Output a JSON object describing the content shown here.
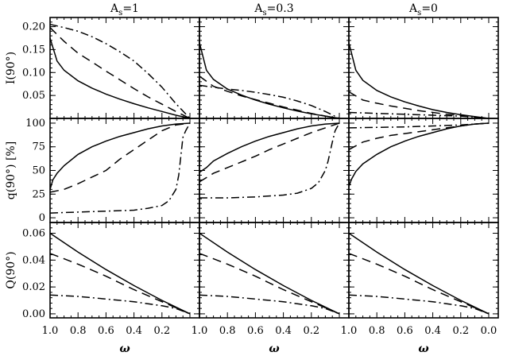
{
  "columns": [
    {
      "label": "A",
      "sub": "s",
      "value": "=1"
    },
    {
      "label": "A",
      "sub": "s",
      "value": "=0.3"
    },
    {
      "label": "A",
      "sub": "s",
      "value": "=0"
    }
  ],
  "x_axis": {
    "label": "ω",
    "ticks": [
      "1.0",
      "0.8",
      "0.6",
      "0.4",
      "0.2",
      "0.0"
    ]
  },
  "chart_data": [
    {
      "type": "line",
      "row_label": "I(90°)",
      "ylabel": "I(90°)",
      "xlabel": "ω",
      "xlim": [
        1.0,
        0.0
      ],
      "ylim": [
        0.0,
        0.22
      ],
      "yticks": [
        0.05,
        0.1,
        0.15,
        0.2
      ],
      "ytick_labels": [
        "0.05",
        "0.10",
        "0.15",
        "0.20"
      ],
      "panels": [
        {
          "column": "As=1",
          "series": [
            {
              "style": "solid",
              "x": [
                1.0,
                0.95,
                0.9,
                0.8,
                0.7,
                0.6,
                0.5,
                0.4,
                0.3,
                0.2,
                0.1,
                0.0
              ],
              "y": [
                0.175,
                0.125,
                0.105,
                0.082,
                0.066,
                0.053,
                0.042,
                0.032,
                0.023,
                0.015,
                0.007,
                0.0
              ]
            },
            {
              "style": "dash",
              "x": [
                1.0,
                0.9,
                0.8,
                0.7,
                0.6,
                0.5,
                0.4,
                0.3,
                0.2,
                0.1,
                0.0
              ],
              "y": [
                0.198,
                0.168,
                0.142,
                0.123,
                0.103,
                0.084,
                0.065,
                0.047,
                0.031,
                0.015,
                0.0
              ]
            },
            {
              "style": "dashdot",
              "x": [
                1.0,
                0.9,
                0.8,
                0.7,
                0.6,
                0.5,
                0.4,
                0.3,
                0.2,
                0.1,
                0.0
              ],
              "y": [
                0.205,
                0.198,
                0.19,
                0.178,
                0.163,
                0.145,
                0.125,
                0.098,
                0.068,
                0.032,
                0.0
              ]
            }
          ]
        },
        {
          "column": "As=0.3",
          "series": [
            {
              "style": "solid",
              "x": [
                1.0,
                0.95,
                0.9,
                0.8,
                0.7,
                0.6,
                0.5,
                0.4,
                0.3,
                0.2,
                0.1,
                0.0
              ],
              "y": [
                0.165,
                0.105,
                0.085,
                0.064,
                0.051,
                0.04,
                0.031,
                0.023,
                0.016,
                0.01,
                0.005,
                0.0
              ]
            },
            {
              "style": "dash",
              "x": [
                1.0,
                0.9,
                0.8,
                0.7,
                0.6,
                0.5,
                0.4,
                0.3,
                0.2,
                0.1,
                0.0
              ],
              "y": [
                0.092,
                0.07,
                0.059,
                0.049,
                0.041,
                0.033,
                0.025,
                0.018,
                0.011,
                0.005,
                0.0
              ]
            },
            {
              "style": "dashdot",
              "x": [
                1.0,
                0.9,
                0.8,
                0.7,
                0.6,
                0.5,
                0.4,
                0.3,
                0.2,
                0.1,
                0.0
              ],
              "y": [
                0.072,
                0.068,
                0.064,
                0.061,
                0.057,
                0.052,
                0.046,
                0.038,
                0.028,
                0.015,
                0.0
              ]
            }
          ]
        },
        {
          "column": "As=0",
          "series": [
            {
              "style": "solid",
              "x": [
                1.0,
                0.95,
                0.9,
                0.8,
                0.7,
                0.6,
                0.5,
                0.4,
                0.3,
                0.2,
                0.1,
                0.0
              ],
              "y": [
                0.165,
                0.105,
                0.083,
                0.061,
                0.047,
                0.036,
                0.027,
                0.019,
                0.013,
                0.008,
                0.004,
                0.0
              ]
            },
            {
              "style": "dash",
              "x": [
                1.0,
                0.9,
                0.8,
                0.7,
                0.6,
                0.5,
                0.4,
                0.3,
                0.2,
                0.1,
                0.0
              ],
              "y": [
                0.058,
                0.04,
                0.033,
                0.027,
                0.022,
                0.017,
                0.013,
                0.009,
                0.006,
                0.003,
                0.0
              ]
            },
            {
              "style": "dashdot",
              "x": [
                1.0,
                0.8,
                0.6,
                0.4,
                0.2,
                0.1,
                0.0
              ],
              "y": [
                0.013,
                0.011,
                0.009,
                0.007,
                0.005,
                0.003,
                0.0
              ]
            }
          ]
        }
      ]
    },
    {
      "type": "line",
      "row_label": "q(90°) [%]",
      "ylabel": "q(90°) [%]",
      "xlabel": "ω",
      "xlim": [
        1.0,
        0.0
      ],
      "ylim": [
        -5,
        105
      ],
      "yticks": [
        0,
        25,
        50,
        75,
        100
      ],
      "ytick_labels": [
        "0",
        "25",
        "50",
        "75",
        "100"
      ],
      "panels": [
        {
          "column": "As=1",
          "series": [
            {
              "style": "solid",
              "x": [
                1.0,
                0.98,
                0.95,
                0.9,
                0.8,
                0.7,
                0.6,
                0.5,
                0.4,
                0.3,
                0.2,
                0.1,
                0.0
              ],
              "y": [
                30,
                40,
                47,
                55,
                67,
                75,
                81,
                86,
                90,
                94,
                97,
                99,
                100
              ]
            },
            {
              "style": "dash",
              "x": [
                1.0,
                0.9,
                0.8,
                0.7,
                0.6,
                0.5,
                0.4,
                0.3,
                0.2,
                0.1,
                0.0
              ],
              "y": [
                27,
                30,
                36,
                43,
                50,
                62,
                72,
                82,
                92,
                98,
                100
              ]
            },
            {
              "style": "dashdot",
              "x": [
                1.0,
                0.8,
                0.6,
                0.4,
                0.3,
                0.2,
                0.15,
                0.1,
                0.08,
                0.05,
                0.03,
                0.0
              ],
              "y": [
                5,
                6,
                7,
                8,
                10,
                13,
                18,
                30,
                45,
                85,
                92,
                100
              ]
            }
          ]
        },
        {
          "column": "As=0.3",
          "series": [
            {
              "style": "solid",
              "x": [
                1.0,
                0.98,
                0.95,
                0.9,
                0.8,
                0.7,
                0.6,
                0.5,
                0.4,
                0.3,
                0.2,
                0.1,
                0.0
              ],
              "y": [
                48,
                50,
                53,
                60,
                68,
                75,
                81,
                86,
                90,
                94,
                97,
                99,
                100
              ]
            },
            {
              "style": "dash",
              "x": [
                1.0,
                0.9,
                0.8,
                0.7,
                0.6,
                0.5,
                0.4,
                0.3,
                0.2,
                0.1,
                0.0
              ],
              "y": [
                38,
                47,
                53,
                59,
                65,
                72,
                78,
                84,
                90,
                95,
                100
              ]
            },
            {
              "style": "dashdot",
              "x": [
                1.0,
                0.8,
                0.6,
                0.4,
                0.3,
                0.2,
                0.15,
                0.1,
                0.08,
                0.05,
                0.03,
                0.0
              ],
              "y": [
                21,
                21,
                22,
                24,
                26,
                31,
                37,
                50,
                60,
                80,
                92,
                100
              ]
            }
          ]
        },
        {
          "column": "As=0",
          "series": [
            {
              "style": "solid",
              "x": [
                1.0,
                0.98,
                0.95,
                0.9,
                0.8,
                0.7,
                0.6,
                0.5,
                0.4,
                0.3,
                0.2,
                0.1,
                0.0
              ],
              "y": [
                33,
                41,
                49,
                57,
                67,
                75,
                81,
                86,
                90,
                94,
                97,
                99,
                100
              ]
            },
            {
              "style": "dash",
              "x": [
                1.0,
                0.9,
                0.8,
                0.7,
                0.6,
                0.5,
                0.4,
                0.3,
                0.2,
                0.1,
                0.0
              ],
              "y": [
                72,
                80,
                84,
                87,
                89,
                91,
                93,
                95,
                97,
                99,
                100
              ]
            },
            {
              "style": "dashdot",
              "x": [
                1.0,
                0.8,
                0.6,
                0.4,
                0.2,
                0.1,
                0.0
              ],
              "y": [
                95,
                95.5,
                96,
                97,
                98,
                99,
                100
              ]
            }
          ]
        }
      ]
    },
    {
      "type": "line",
      "row_label": "Q(90°)",
      "ylabel": "Q(90°)",
      "xlabel": "ω",
      "xlim": [
        1.0,
        0.0
      ],
      "ylim": [
        -0.003,
        0.068
      ],
      "yticks": [
        0.0,
        0.02,
        0.04,
        0.06
      ],
      "ytick_labels": [
        "0.00",
        "0.02",
        "0.04",
        "0.06"
      ],
      "panels": [
        {
          "column": "As=1",
          "series": [
            {
              "style": "solid",
              "x": [
                1.0,
                0.8,
                0.6,
                0.4,
                0.2,
                0.0
              ],
              "y": [
                0.06,
                0.046,
                0.033,
                0.021,
                0.01,
                0.0
              ]
            },
            {
              "style": "dash",
              "x": [
                1.0,
                0.8,
                0.6,
                0.4,
                0.2,
                0.0
              ],
              "y": [
                0.045,
                0.037,
                0.028,
                0.018,
                0.009,
                0.0
              ]
            },
            {
              "style": "dashdot",
              "x": [
                1.0,
                0.8,
                0.6,
                0.4,
                0.2,
                0.1,
                0.0
              ],
              "y": [
                0.014,
                0.013,
                0.011,
                0.009,
                0.006,
                0.004,
                0.0
              ]
            }
          ]
        },
        {
          "column": "As=0.3",
          "series": [
            {
              "style": "solid",
              "x": [
                1.0,
                0.8,
                0.6,
                0.4,
                0.2,
                0.0
              ],
              "y": [
                0.06,
                0.046,
                0.033,
                0.021,
                0.01,
                0.0
              ]
            },
            {
              "style": "dash",
              "x": [
                1.0,
                0.8,
                0.6,
                0.4,
                0.2,
                0.0
              ],
              "y": [
                0.045,
                0.037,
                0.028,
                0.018,
                0.009,
                0.0
              ]
            },
            {
              "style": "dashdot",
              "x": [
                1.0,
                0.8,
                0.6,
                0.4,
                0.2,
                0.1,
                0.0
              ],
              "y": [
                0.014,
                0.013,
                0.011,
                0.009,
                0.006,
                0.004,
                0.0
              ]
            }
          ]
        },
        {
          "column": "As=0",
          "series": [
            {
              "style": "solid",
              "x": [
                1.0,
                0.8,
                0.6,
                0.4,
                0.2,
                0.0
              ],
              "y": [
                0.06,
                0.046,
                0.033,
                0.021,
                0.01,
                0.0
              ]
            },
            {
              "style": "dash",
              "x": [
                1.0,
                0.8,
                0.6,
                0.4,
                0.2,
                0.0
              ],
              "y": [
                0.045,
                0.037,
                0.028,
                0.018,
                0.009,
                0.0
              ]
            },
            {
              "style": "dashdot",
              "x": [
                1.0,
                0.8,
                0.6,
                0.4,
                0.2,
                0.1,
                0.0
              ],
              "y": [
                0.014,
                0.013,
                0.011,
                0.009,
                0.006,
                0.004,
                0.0
              ]
            }
          ]
        }
      ]
    }
  ]
}
